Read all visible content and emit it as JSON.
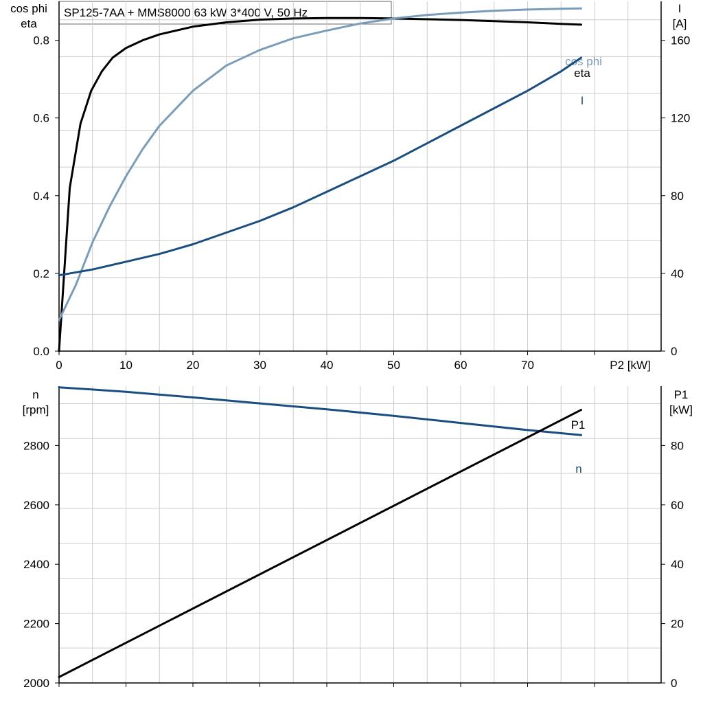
{
  "title": "SP125-7AA + MMS8000   63 kW   3*400 V, 50 Hz",
  "colors": {
    "eta": "#000000",
    "cosphi": "#7a9cbb",
    "current": "#1a4d80",
    "speed": "#1a4d80",
    "p1": "#000000",
    "grid": "#cccccc",
    "axis": "#000000"
  },
  "chart_data": [
    {
      "type": "line",
      "id": "top",
      "x_axis": {
        "label": "P2 [kW]",
        "range": [
          0,
          80
        ],
        "ticks": [
          0,
          10,
          20,
          30,
          40,
          50,
          60,
          70
        ]
      },
      "y_left": {
        "label_lines": [
          "cos phi",
          "eta"
        ],
        "range": [
          0,
          0.9
        ],
        "ticks": [
          0.0,
          0.2,
          0.4,
          0.6,
          0.8
        ],
        "tick_labels": [
          "0.0",
          "0.2",
          "0.4",
          "0.6",
          "0.8"
        ]
      },
      "y_right": {
        "label_lines": [
          "I",
          "[A]"
        ],
        "range": [
          0,
          180
        ],
        "ticks": [
          0,
          40,
          80,
          120,
          160
        ],
        "tick_labels": [
          "0",
          "40",
          "80",
          "120",
          "160"
        ]
      },
      "grid": true,
      "series": [
        {
          "name": "eta",
          "axis": "left",
          "color_key": "eta",
          "x": [
            0,
            1.6,
            3.2,
            4.8,
            6.4,
            8,
            10,
            12.5,
            15,
            20,
            25,
            30,
            35,
            40,
            45,
            50,
            55,
            60,
            65,
            70,
            75,
            78
          ],
          "y": [
            0.0,
            0.42,
            0.585,
            0.67,
            0.72,
            0.755,
            0.78,
            0.8,
            0.815,
            0.835,
            0.846,
            0.853,
            0.856,
            0.857,
            0.857,
            0.856,
            0.854,
            0.852,
            0.849,
            0.846,
            0.842,
            0.84
          ]
        },
        {
          "name": "cos phi",
          "axis": "left",
          "color_key": "cosphi",
          "x": [
            0,
            2.5,
            5,
            7.5,
            10,
            12.5,
            15,
            20,
            25,
            30,
            35,
            40,
            45,
            50,
            55,
            60,
            65,
            70,
            75,
            78
          ],
          "y": [
            0.08,
            0.17,
            0.28,
            0.37,
            0.45,
            0.52,
            0.58,
            0.67,
            0.735,
            0.775,
            0.805,
            0.825,
            0.843,
            0.856,
            0.865,
            0.871,
            0.876,
            0.879,
            0.881,
            0.882
          ]
        },
        {
          "name": "I",
          "axis": "right",
          "color_key": "current",
          "x": [
            0,
            5,
            10,
            15,
            20,
            25,
            30,
            35,
            40,
            45,
            50,
            55,
            60,
            65,
            70,
            75,
            78
          ],
          "y": [
            39,
            42,
            46,
            50,
            55,
            61,
            67,
            74,
            82,
            90,
            98,
            107,
            116,
            125,
            134,
            144,
            151
          ]
        }
      ]
    },
    {
      "type": "line",
      "id": "bottom",
      "x_axis": {
        "label": "",
        "range": [
          0,
          80
        ],
        "ticks": [
          0,
          10,
          20,
          30,
          40,
          50,
          60,
          70
        ]
      },
      "y_left": {
        "label_lines": [
          "n",
          "[rpm]"
        ],
        "range": [
          2000,
          3000
        ],
        "ticks": [
          2000,
          2200,
          2400,
          2600,
          2800
        ],
        "tick_labels": [
          "2000",
          "2200",
          "2400",
          "2600",
          "2800"
        ]
      },
      "y_right": {
        "label_lines": [
          "P1",
          "[kW]"
        ],
        "range": [
          0,
          100
        ],
        "ticks": [
          0,
          20,
          40,
          60,
          80
        ],
        "tick_labels": [
          "0",
          "20",
          "40",
          "60",
          "80"
        ]
      },
      "grid": true,
      "series": [
        {
          "name": "n",
          "axis": "left",
          "color_key": "speed",
          "x": [
            0,
            10,
            20,
            30,
            40,
            50,
            60,
            70,
            78
          ],
          "y": [
            2996,
            2981,
            2962,
            2942,
            2922,
            2900,
            2876,
            2852,
            2835
          ]
        },
        {
          "name": "P1",
          "axis": "right",
          "color_key": "p1",
          "x": [
            0,
            78
          ],
          "y": [
            2,
            92
          ]
        }
      ]
    }
  ]
}
